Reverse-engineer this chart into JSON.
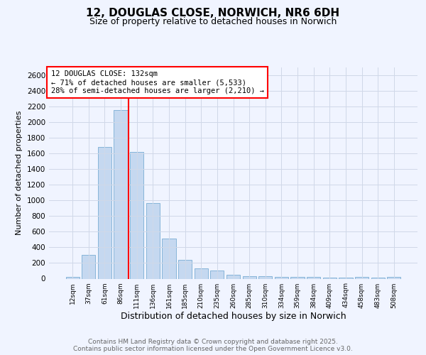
{
  "title_line1": "12, DOUGLAS CLOSE, NORWICH, NR6 6DH",
  "title_line2": "Size of property relative to detached houses in Norwich",
  "xlabel": "Distribution of detached houses by size in Norwich",
  "ylabel": "Number of detached properties",
  "categories": [
    "12sqm",
    "37sqm",
    "61sqm",
    "86sqm",
    "111sqm",
    "136sqm",
    "161sqm",
    "185sqm",
    "210sqm",
    "235sqm",
    "260sqm",
    "285sqm",
    "310sqm",
    "334sqm",
    "359sqm",
    "384sqm",
    "409sqm",
    "434sqm",
    "458sqm",
    "483sqm",
    "508sqm"
  ],
  "values": [
    20,
    300,
    1680,
    2160,
    1620,
    970,
    510,
    245,
    130,
    105,
    50,
    35,
    30,
    20,
    20,
    20,
    15,
    10,
    20,
    10,
    20
  ],
  "bar_color": "#c5d8f0",
  "bar_edgecolor": "#7aadd4",
  "red_line_x": 3.5,
  "annotation_text": "12 DOUGLAS CLOSE: 132sqm\n← 71% of detached houses are smaller (5,533)\n28% of semi-detached houses are larger (2,210) →",
  "annotation_fontsize": 7.5,
  "box_facecolor": "white",
  "box_edgecolor": "red",
  "red_line_color": "red",
  "ylim": [
    0,
    2700
  ],
  "yticks": [
    0,
    200,
    400,
    600,
    800,
    1000,
    1200,
    1400,
    1600,
    1800,
    2000,
    2200,
    2400,
    2600
  ],
  "grid_color": "#d0d8e8",
  "background_color": "#f0f4ff",
  "footer_line1": "Contains HM Land Registry data © Crown copyright and database right 2025.",
  "footer_line2": "Contains public sector information licensed under the Open Government Licence v3.0.",
  "footer_fontsize": 6.5,
  "title1_fontsize": 11,
  "title2_fontsize": 9,
  "xlabel_fontsize": 9,
  "ylabel_fontsize": 8
}
